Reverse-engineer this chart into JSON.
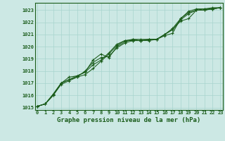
{
  "bg_color": "#cce8e4",
  "grid_color": "#a8d4ce",
  "line_color": "#1a5c1a",
  "title": "Graphe pression niveau de la mer (hPa)",
  "ylim": [
    1014.8,
    1023.6
  ],
  "xlim": [
    -0.3,
    23.3
  ],
  "yticks": [
    1015,
    1016,
    1017,
    1018,
    1019,
    1020,
    1021,
    1022,
    1023
  ],
  "xticks": [
    0,
    1,
    2,
    3,
    4,
    5,
    6,
    7,
    8,
    9,
    10,
    11,
    12,
    13,
    14,
    15,
    16,
    17,
    18,
    19,
    20,
    21,
    22,
    23
  ],
  "series": [
    [
      1015.1,
      1015.3,
      1016.0,
      1016.9,
      1017.2,
      1017.5,
      1017.7,
      1018.2,
      1018.8,
      1019.4,
      1020.1,
      1020.5,
      1020.5,
      1020.5,
      1020.5,
      1020.6,
      1020.9,
      1021.1,
      1022.3,
      1022.9,
      1023.1,
      1023.1,
      1023.2,
      1023.2
    ],
    [
      1015.1,
      1015.3,
      1016.1,
      1017.0,
      1017.3,
      1017.5,
      1018.0,
      1018.7,
      1019.1,
      1019.2,
      1019.9,
      1020.3,
      1020.5,
      1020.5,
      1020.6,
      1020.6,
      1021.0,
      1021.4,
      1022.1,
      1022.3,
      1023.0,
      1023.0,
      1023.1,
      1023.2
    ],
    [
      1015.1,
      1015.3,
      1016.0,
      1017.0,
      1017.3,
      1017.6,
      1017.9,
      1018.9,
      1019.4,
      1019.1,
      1020.0,
      1020.4,
      1020.6,
      1020.6,
      1020.6,
      1020.6,
      1021.0,
      1021.4,
      1022.2,
      1022.7,
      1023.0,
      1023.0,
      1023.1,
      1023.2
    ],
    [
      1015.1,
      1015.3,
      1016.1,
      1017.0,
      1017.5,
      1017.6,
      1017.9,
      1018.5,
      1018.9,
      1019.5,
      1020.2,
      1020.5,
      1020.6,
      1020.5,
      1020.6,
      1020.6,
      1021.0,
      1021.5,
      1022.3,
      1022.8,
      1023.0,
      1023.1,
      1023.1,
      1023.2
    ]
  ]
}
